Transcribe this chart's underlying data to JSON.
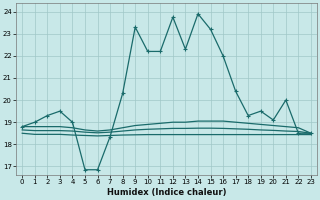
{
  "xlabel": "Humidex (Indice chaleur)",
  "bg_color": "#c8e8e8",
  "grid_color": "#a0c8c8",
  "line_color": "#1a6b6b",
  "xlim": [
    -0.5,
    23.5
  ],
  "ylim": [
    16.6,
    24.4
  ],
  "yticks": [
    17,
    18,
    19,
    20,
    21,
    22,
    23,
    24
  ],
  "xticks": [
    0,
    1,
    2,
    3,
    4,
    5,
    6,
    7,
    8,
    9,
    10,
    11,
    12,
    13,
    14,
    15,
    16,
    17,
    18,
    19,
    20,
    21,
    22,
    23
  ],
  "line1_x": [
    0,
    1,
    2,
    3,
    4,
    5,
    6,
    7,
    8,
    9,
    10,
    11,
    12,
    13,
    14,
    15,
    16,
    17,
    18,
    19,
    20,
    21,
    22,
    23
  ],
  "line1_y": [
    18.8,
    19.0,
    19.3,
    19.5,
    19.0,
    16.85,
    16.85,
    18.35,
    20.3,
    23.3,
    22.2,
    22.2,
    23.75,
    22.3,
    23.9,
    23.2,
    22.0,
    20.4,
    19.3,
    19.5,
    19.1,
    20.0,
    18.5,
    18.5
  ],
  "line2_x": [
    0,
    1,
    2,
    3,
    4,
    5,
    6,
    7,
    8,
    9,
    10,
    11,
    12,
    13,
    14,
    15,
    16,
    17,
    18,
    19,
    20,
    21,
    22,
    23
  ],
  "line2_y": [
    18.8,
    18.8,
    18.8,
    18.8,
    18.75,
    18.65,
    18.6,
    18.65,
    18.75,
    18.85,
    18.9,
    18.95,
    19.0,
    19.0,
    19.05,
    19.05,
    19.05,
    19.0,
    18.95,
    18.9,
    18.85,
    18.8,
    18.75,
    18.5
  ],
  "line3_x": [
    0,
    1,
    2,
    3,
    4,
    5,
    6,
    7,
    8,
    9,
    10,
    11,
    12,
    13,
    14,
    15,
    16,
    17,
    18,
    19,
    20,
    21,
    22,
    23
  ],
  "line3_y": [
    18.5,
    18.45,
    18.45,
    18.45,
    18.42,
    18.4,
    18.38,
    18.4,
    18.42,
    18.43,
    18.44,
    18.44,
    18.44,
    18.44,
    18.44,
    18.44,
    18.44,
    18.44,
    18.44,
    18.44,
    18.44,
    18.44,
    18.44,
    18.44
  ],
  "line4_x": [
    0,
    1,
    2,
    3,
    4,
    5,
    6,
    7,
    8,
    9,
    10,
    11,
    12,
    13,
    14,
    15,
    16,
    17,
    18,
    19,
    20,
    21,
    22,
    23
  ],
  "line4_y": [
    18.65,
    18.62,
    18.62,
    18.62,
    18.6,
    18.55,
    18.52,
    18.55,
    18.6,
    18.65,
    18.68,
    18.7,
    18.72,
    18.72,
    18.73,
    18.73,
    18.72,
    18.7,
    18.68,
    18.65,
    18.63,
    18.6,
    18.58,
    18.5
  ]
}
